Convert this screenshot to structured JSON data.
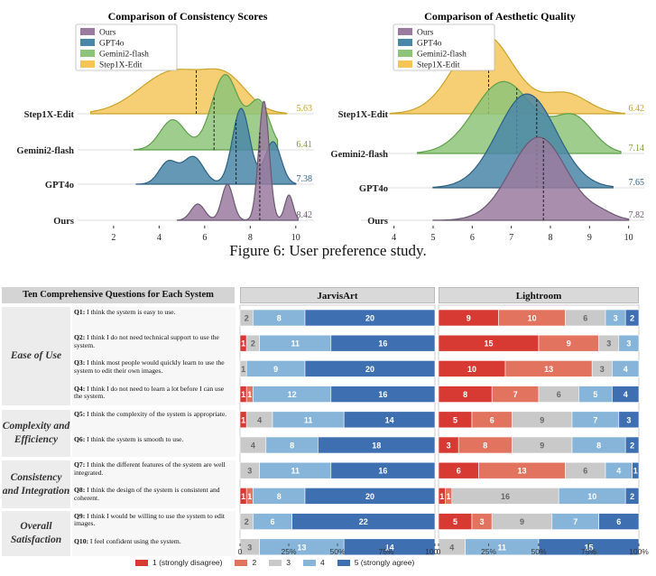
{
  "figure_caption": "Figure 6: User preference study.",
  "chart_data": [
    {
      "type": "ridgeline",
      "title": "Comparison of Consistency Scores",
      "legend": [
        "Ours",
        "GPT4o",
        "Gemini2-flash",
        "Step1X-Edit"
      ],
      "rows": [
        "Step1X-Edit",
        "Gemini2-flash",
        "GPT4o",
        "Ours"
      ],
      "means": [
        "5.63",
        "6.41",
        "7.38",
        "8.42"
      ],
      "xticks": [
        "2",
        "4",
        "6",
        "8",
        "10"
      ],
      "xlim": [
        0.5,
        10.8
      ]
    },
    {
      "type": "ridgeline",
      "title": "Comparison of Aesthetic Quality",
      "legend": [
        "Ours",
        "GPT4o",
        "Gemini2-flash",
        "Step1X-Edit"
      ],
      "rows": [
        "Step1X-Edit",
        "Gemini2-flash",
        "GPT4o",
        "Ours"
      ],
      "means": [
        "6.42",
        "7.14",
        "7.65",
        "7.82"
      ],
      "xticks": [
        "4",
        "5",
        "6",
        "7",
        "8",
        "9",
        "10"
      ],
      "xlim": [
        3.2,
        10.4
      ]
    },
    {
      "type": "stacked-bar",
      "header": "Ten Comprehensive Questions for Each System",
      "systems": [
        "JarvisArt",
        "Lightroom"
      ],
      "categories": [
        {
          "name": "Ease of Use",
          "rows": [
            0,
            3
          ]
        },
        {
          "name": "Complexity and Efficiency",
          "rows": [
            4,
            5
          ]
        },
        {
          "name": "Consistency and Integration",
          "rows": [
            6,
            7
          ]
        },
        {
          "name": "Overall Satisfaction",
          "rows": [
            8,
            9
          ]
        }
      ],
      "questions": [
        {
          "id": "Q1:",
          "text": "I think the system is easy to use."
        },
        {
          "id": "Q2:",
          "text": "I think I do not need technical support to use the system."
        },
        {
          "id": "Q3:",
          "text": "I think most people would quickly learn to use the system to edit their own images."
        },
        {
          "id": "Q4:",
          "text": "I think I do not need to learn a lot before I can use the system."
        },
        {
          "id": "Q5:",
          "text": "I think the complexity of the system is appropriate."
        },
        {
          "id": "Q6:",
          "text": "I think the system is smooth to use."
        },
        {
          "id": "Q7:",
          "text": "I think the different features of the system are well integrated."
        },
        {
          "id": "Q8:",
          "text": "I think the design of the system is consistent and coherent."
        },
        {
          "id": "Q9:",
          "text": "I think I would be willing to use the system to edit images."
        },
        {
          "id": "Q10:",
          "text": "I feel confident using the system."
        }
      ],
      "jarvisart": [
        [
          0,
          0,
          2,
          8,
          20
        ],
        [
          1,
          0,
          2,
          11,
          16
        ],
        [
          0,
          0,
          1,
          9,
          20
        ],
        [
          1,
          1,
          0,
          12,
          16
        ],
        [
          1,
          0,
          4,
          11,
          14
        ],
        [
          0,
          0,
          4,
          8,
          18
        ],
        [
          0,
          0,
          3,
          11,
          16
        ],
        [
          1,
          1,
          0,
          8,
          20
        ],
        [
          0,
          0,
          2,
          6,
          22
        ],
        [
          0,
          0,
          3,
          13,
          14
        ]
      ],
      "lightroom": [
        [
          9,
          10,
          6,
          3,
          2
        ],
        [
          15,
          9,
          3,
          3,
          0
        ],
        [
          10,
          13,
          3,
          4,
          0
        ],
        [
          8,
          7,
          6,
          5,
          4
        ],
        [
          5,
          6,
          9,
          7,
          3
        ],
        [
          3,
          8,
          9,
          8,
          2
        ],
        [
          6,
          13,
          6,
          4,
          1
        ],
        [
          1,
          1,
          16,
          10,
          2
        ],
        [
          5,
          3,
          9,
          7,
          6
        ],
        [
          0,
          0,
          4,
          11,
          15
        ]
      ],
      "xticks": [
        "0",
        "25%",
        "50%",
        "75%",
        "100%"
      ],
      "legend": [
        "1 (strongly disagree)",
        "2",
        "3",
        "4",
        "5 (strongly agree)"
      ]
    }
  ],
  "colors": {
    "ours": "#9a7a9f",
    "gpt4o": "#4a86a8",
    "gemini": "#8dc47a",
    "step1x": "#f5c55a",
    "likert": [
      "#d63a33",
      "#e1735f",
      "#c9c9c9",
      "#86b5d9",
      "#3e6fb0"
    ],
    "mean_labels": [
      "#c9a32b",
      "#7f9f3c",
      "#2d6182",
      "#6a5970"
    ]
  }
}
